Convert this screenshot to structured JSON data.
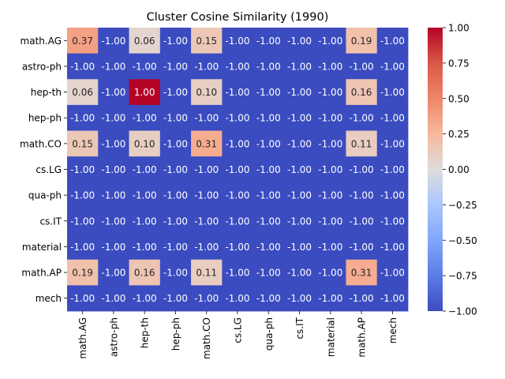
{
  "chart_data": {
    "type": "heatmap",
    "title": "Cluster Cosine Similarity (1990)",
    "xlabel": "",
    "ylabel": "",
    "row_labels": [
      "math.AG",
      "astro-ph",
      "hep-th",
      "hep-ph",
      "math.CO",
      "cs.LG",
      "qua-ph",
      "cs.IT",
      "material",
      "math.AP",
      "mech"
    ],
    "col_labels": [
      "math.AG",
      "astro-ph",
      "hep-th",
      "hep-ph",
      "math.CO",
      "cs.LG",
      "qua-ph",
      "cs.IT",
      "material",
      "math.AP",
      "mech"
    ],
    "values": [
      [
        0.37,
        -1.0,
        0.06,
        -1.0,
        0.15,
        -1.0,
        -1.0,
        -1.0,
        -1.0,
        0.19,
        -1.0
      ],
      [
        -1.0,
        -1.0,
        -1.0,
        -1.0,
        -1.0,
        -1.0,
        -1.0,
        -1.0,
        -1.0,
        -1.0,
        -1.0
      ],
      [
        0.06,
        -1.0,
        1.0,
        -1.0,
        0.1,
        -1.0,
        -1.0,
        -1.0,
        -1.0,
        0.16,
        -1.0
      ],
      [
        -1.0,
        -1.0,
        -1.0,
        -1.0,
        -1.0,
        -1.0,
        -1.0,
        -1.0,
        -1.0,
        -1.0,
        -1.0
      ],
      [
        0.15,
        -1.0,
        0.1,
        -1.0,
        0.31,
        -1.0,
        -1.0,
        -1.0,
        -1.0,
        0.11,
        -1.0
      ],
      [
        -1.0,
        -1.0,
        -1.0,
        -1.0,
        -1.0,
        -1.0,
        -1.0,
        -1.0,
        -1.0,
        -1.0,
        -1.0
      ],
      [
        -1.0,
        -1.0,
        -1.0,
        -1.0,
        -1.0,
        -1.0,
        -1.0,
        -1.0,
        -1.0,
        -1.0,
        -1.0
      ],
      [
        -1.0,
        -1.0,
        -1.0,
        -1.0,
        -1.0,
        -1.0,
        -1.0,
        -1.0,
        -1.0,
        -1.0,
        -1.0
      ],
      [
        -1.0,
        -1.0,
        -1.0,
        -1.0,
        -1.0,
        -1.0,
        -1.0,
        -1.0,
        -1.0,
        -1.0,
        -1.0
      ],
      [
        0.19,
        -1.0,
        0.16,
        -1.0,
        0.11,
        -1.0,
        -1.0,
        -1.0,
        -1.0,
        0.31,
        -1.0
      ],
      [
        -1.0,
        -1.0,
        -1.0,
        -1.0,
        -1.0,
        -1.0,
        -1.0,
        -1.0,
        -1.0,
        -1.0,
        -1.0
      ]
    ],
    "value_format": "2-decimal",
    "colormap": "coolwarm",
    "vmin": -1.0,
    "vmax": 1.0,
    "colorbar": {
      "ticks": [
        -1.0,
        -0.75,
        -0.5,
        -0.25,
        0.0,
        0.25,
        0.5,
        0.75,
        1.0
      ],
      "tick_labels": [
        "−1.00",
        "−0.75",
        "−0.50",
        "−0.25",
        "0.00",
        "0.25",
        "0.50",
        "0.75",
        "1.00"
      ],
      "placement": "right"
    },
    "grid": false,
    "x_tick_rotation": "vertical"
  }
}
